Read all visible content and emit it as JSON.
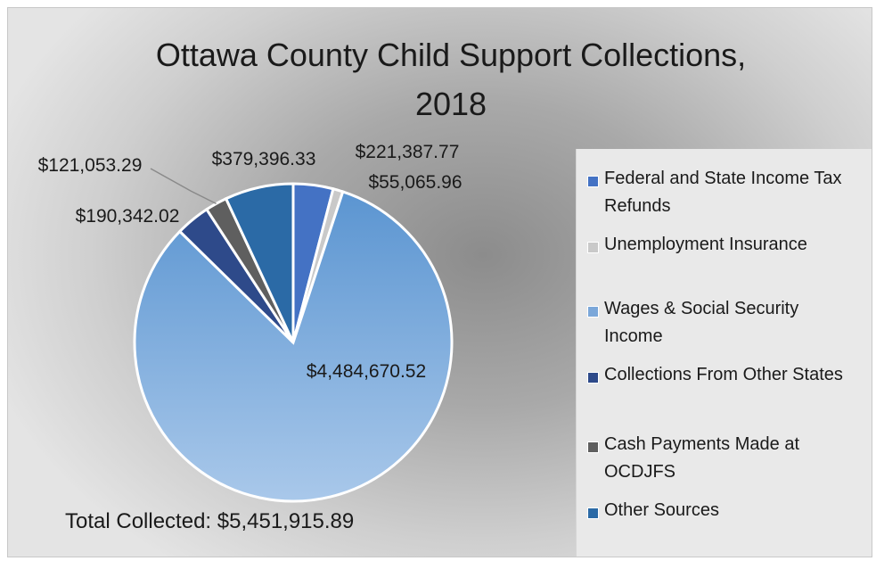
{
  "chart_data": {
    "type": "pie",
    "title": "Ottawa County Child Support Collections, 2018",
    "title_lines": [
      "Ottawa County Child Support Collections,",
      "2018"
    ],
    "categories": [
      "Federal and State Income Tax Refunds",
      "Unemployment Insurance",
      "Wages & Social Security Income",
      "Collections From Other States",
      "Cash Payments Made at OCDJFS",
      "Other Sources"
    ],
    "values": [
      221387.77,
      55065.96,
      4484670.52,
      190342.02,
      121053.29,
      379396.33
    ],
    "data_labels": [
      "$221,387.77",
      "$55,065.96",
      "$4,484,670.52",
      "$190,342.02",
      "$121,053.29",
      "$379,396.33"
    ],
    "colors": [
      "#4472c4",
      "#c9c9c9",
      "#7ba7d9",
      "#2e4a8a",
      "#5f5f5f",
      "#2b6aa6"
    ],
    "legend_position": "right",
    "total_annotation": "Total Collected: $5,451,915.89"
  },
  "legend": {
    "lines": [
      [
        "Federal and State Income Tax",
        "Refunds"
      ],
      [
        "Unemployment Insurance"
      ],
      [
        "Wages & Social Security",
        "Income"
      ],
      [
        "Collections From Other States"
      ],
      [
        "Cash Payments Made at",
        "OCDJFS"
      ],
      [
        "Other Sources"
      ]
    ]
  }
}
